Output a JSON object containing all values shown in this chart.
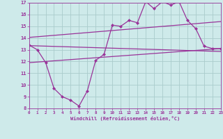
{
  "xlabel": "Windchill (Refroidissement éolien,°C)",
  "bg_color": "#ceeaea",
  "grid_color": "#aacccc",
  "line_color": "#993399",
  "x_ticks": [
    0,
    1,
    2,
    3,
    4,
    5,
    6,
    7,
    8,
    9,
    10,
    11,
    12,
    13,
    14,
    15,
    16,
    17,
    18,
    19,
    20,
    21,
    22,
    23
  ],
  "y_ticks": [
    8,
    9,
    10,
    11,
    12,
    13,
    14,
    15,
    16,
    17
  ],
  "xlim": [
    0,
    23
  ],
  "ylim": [
    8,
    17
  ],
  "series1_x": [
    0,
    1,
    2,
    3,
    4,
    5,
    6,
    7,
    8,
    9,
    10,
    11,
    12,
    13,
    14,
    15,
    16,
    17,
    18,
    19,
    20,
    21,
    22,
    23
  ],
  "series1_y": [
    13.4,
    13.0,
    11.9,
    9.7,
    9.0,
    8.7,
    8.2,
    9.5,
    12.1,
    12.6,
    15.1,
    15.0,
    15.5,
    15.3,
    17.1,
    16.5,
    17.1,
    16.8,
    17.1,
    15.5,
    14.8,
    13.3,
    13.1,
    13.1
  ],
  "series2_x": [
    0,
    23
  ],
  "series2_y": [
    13.35,
    12.85
  ],
  "series3_x": [
    0,
    23
  ],
  "series3_y": [
    14.05,
    15.4
  ],
  "series4_x": [
    0,
    23
  ],
  "series4_y": [
    11.9,
    13.1
  ]
}
